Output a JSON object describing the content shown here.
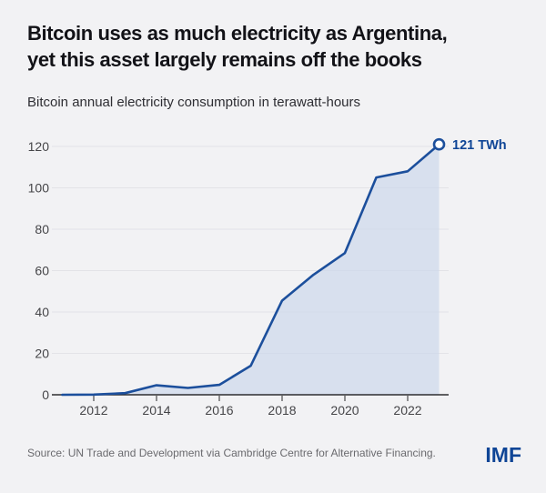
{
  "page": {
    "background": "#f2f2f4"
  },
  "header": {
    "title_line1": "Bitcoin uses as much electricity as Argentina,",
    "title_line2": "yet this asset largely remains off the books",
    "subtitle": "Bitcoin annual electricity consumption in terawatt-hours"
  },
  "chart_data": {
    "type": "area",
    "title": "Bitcoin annual electricity consumption in terawatt-hours",
    "series_name": "Bitcoin annual electricity consumption",
    "x": [
      2011,
      2012,
      2013,
      2014,
      2015,
      2016,
      2017,
      2018,
      2019,
      2020,
      2021,
      2022,
      2023
    ],
    "values": [
      0,
      0.1,
      0.8,
      4.6,
      3.3,
      4.8,
      14,
      45.5,
      58,
      68.5,
      105,
      108,
      121
    ],
    "unit": "TWh",
    "end_annotation": "121 TWh",
    "yticks": [
      0,
      20,
      40,
      60,
      80,
      100,
      120
    ],
    "xticks": [
      2012,
      2014,
      2016,
      2018,
      2020,
      2022
    ],
    "ylim": [
      0,
      129
    ],
    "xlim": [
      2011,
      2023
    ],
    "grid": "horizontal gridlines on",
    "legend": "none",
    "colors": {
      "line": "#1c4f9c",
      "fill": "#cdd8eb",
      "grid": "#e3e3e7",
      "axis": "#2e2e30",
      "tick": "#4a4a4c",
      "tick_label": "#454548",
      "annotation": "#0f4596",
      "marker_fill": "#ffffff"
    }
  },
  "footer": {
    "source": "Source: UN Trade and Development via Cambridge Centre for Alternative Financing.",
    "logo": "IMF"
  }
}
